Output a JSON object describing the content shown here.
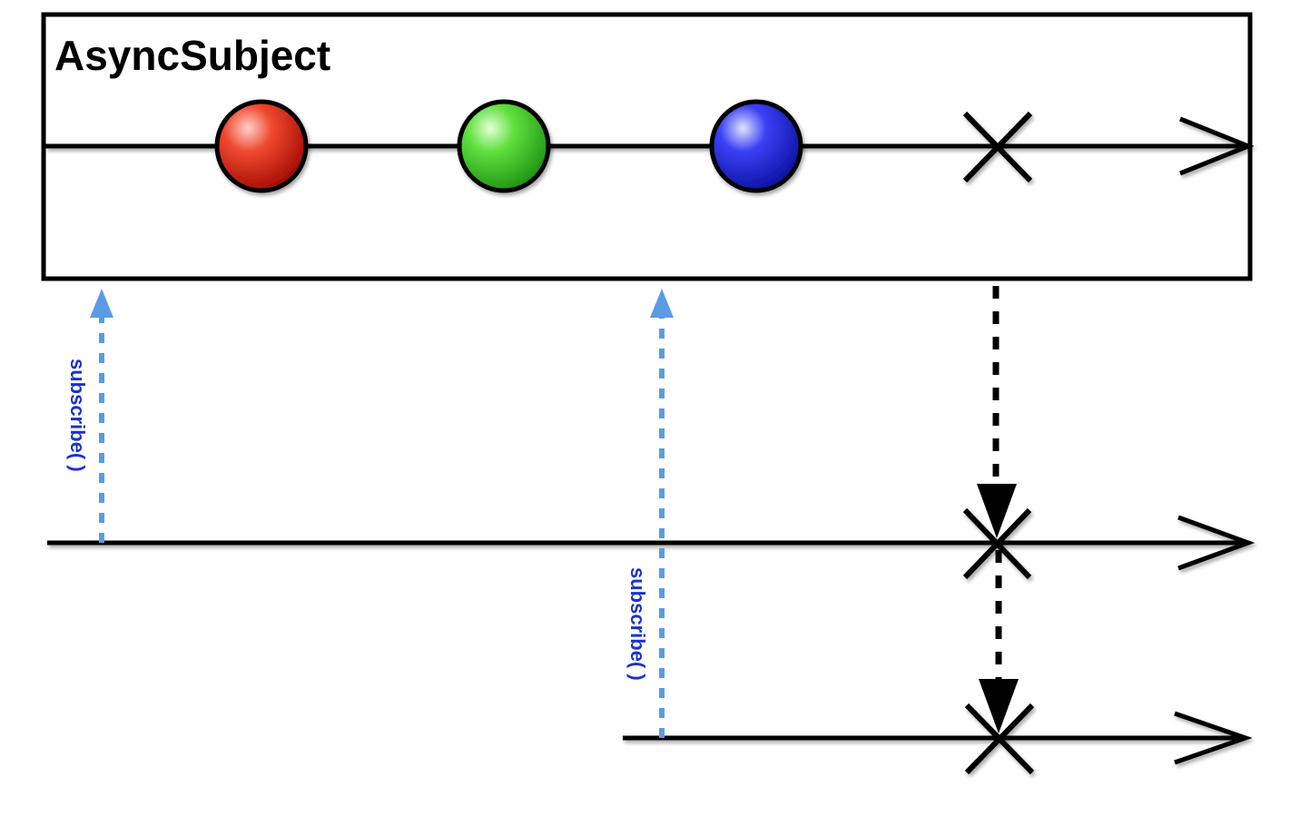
{
  "diagram": {
    "title": "AsyncSubject",
    "subscribe_label": "subscribe( )",
    "colors": {
      "line": "#000000",
      "subscribe_arrow": "#5b9be6",
      "subscribe_text": "#1a33cc",
      "emission_red": "#e02010",
      "emission_green": "#39d020",
      "emission_blue": "#1a1ee8"
    },
    "source_emissions": [
      {
        "name": "red-emission",
        "color": "emission_red"
      },
      {
        "name": "green-emission",
        "color": "emission_green"
      },
      {
        "name": "blue-emission",
        "color": "emission_blue"
      }
    ],
    "source_terminal": "error-x-icon",
    "observers": [
      {
        "name": "observer-1",
        "terminal": "error-x-icon"
      },
      {
        "name": "observer-2",
        "terminal": "error-x-icon"
      }
    ]
  }
}
